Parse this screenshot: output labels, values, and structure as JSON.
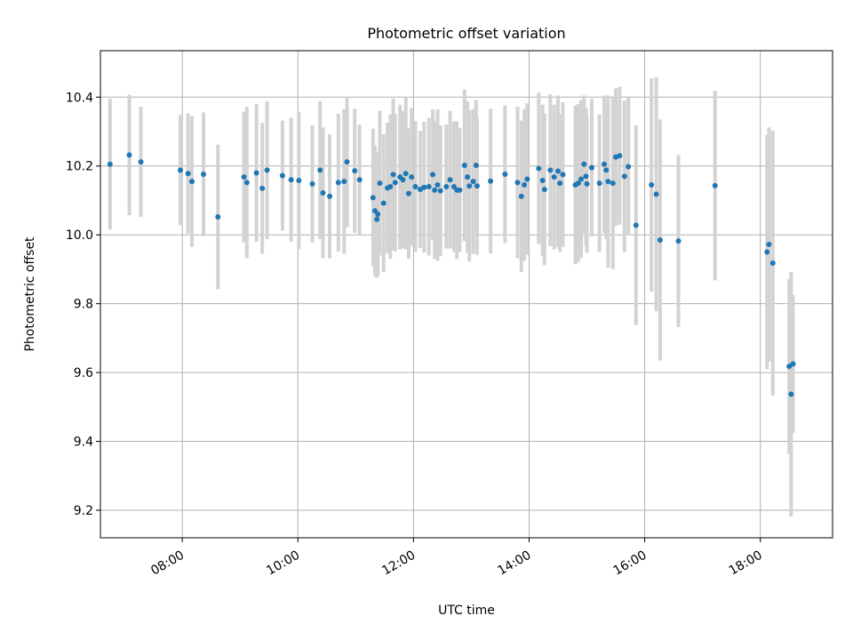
{
  "chart_data": {
    "type": "scatter",
    "title": "Photometric offset variation",
    "xlabel": "UTC time",
    "ylabel": "Photometric offset",
    "xlim": [
      "06:35",
      "19:15"
    ],
    "ylim": [
      9.12,
      10.535
    ],
    "grid": true,
    "x_ticks": [
      "08:00",
      "10:00",
      "12:00",
      "14:00",
      "16:00",
      "18:00"
    ],
    "y_ticks": [
      "9.2",
      "9.4",
      "9.6",
      "9.8",
      "10.0",
      "10.2",
      "10.4"
    ],
    "colors": {
      "point": "#1f77b4",
      "errorbar": "#d3d3d3",
      "grid": "#b0b0b0"
    },
    "points": [
      {
        "x": "06:45",
        "y": 10.205,
        "err": 0.19
      },
      {
        "x": "07:05",
        "y": 10.232,
        "err": 0.175
      },
      {
        "x": "07:17",
        "y": 10.212,
        "err": 0.16
      },
      {
        "x": "07:58",
        "y": 10.188,
        "err": 0.16
      },
      {
        "x": "08:06",
        "y": 10.178,
        "err": 0.175
      },
      {
        "x": "08:10",
        "y": 10.155,
        "err": 0.19
      },
      {
        "x": "08:22",
        "y": 10.176,
        "err": 0.18
      },
      {
        "x": "08:37",
        "y": 10.052,
        "err": 0.21
      },
      {
        "x": "09:04",
        "y": 10.168,
        "err": 0.19
      },
      {
        "x": "09:07",
        "y": 10.152,
        "err": 0.22
      },
      {
        "x": "09:17",
        "y": 10.18,
        "err": 0.2
      },
      {
        "x": "09:23",
        "y": 10.135,
        "err": 0.19
      },
      {
        "x": "09:28",
        "y": 10.188,
        "err": 0.2
      },
      {
        "x": "09:44",
        "y": 10.172,
        "err": 0.16
      },
      {
        "x": "09:53",
        "y": 10.16,
        "err": 0.18
      },
      {
        "x": "10:01",
        "y": 10.158,
        "err": 0.2
      },
      {
        "x": "10:15",
        "y": 10.148,
        "err": 0.17
      },
      {
        "x": "10:23",
        "y": 10.188,
        "err": 0.2
      },
      {
        "x": "10:26",
        "y": 10.122,
        "err": 0.19
      },
      {
        "x": "10:33",
        "y": 10.112,
        "err": 0.18
      },
      {
        "x": "10:42",
        "y": 10.152,
        "err": 0.2
      },
      {
        "x": "10:48",
        "y": 10.155,
        "err": 0.21
      },
      {
        "x": "10:51",
        "y": 10.212,
        "err": 0.19
      },
      {
        "x": "10:59",
        "y": 10.186,
        "err": 0.18
      },
      {
        "x": "11:04",
        "y": 10.16,
        "err": 0.16
      },
      {
        "x": "11:18",
        "y": 10.108,
        "err": 0.2
      },
      {
        "x": "11:20",
        "y": 10.07,
        "err": 0.19
      },
      {
        "x": "11:22",
        "y": 10.045,
        "err": 0.17
      },
      {
        "x": "11:23",
        "y": 10.06,
        "err": 0.18
      },
      {
        "x": "11:25",
        "y": 10.15,
        "err": 0.21
      },
      {
        "x": "11:29",
        "y": 10.092,
        "err": 0.2
      },
      {
        "x": "11:33",
        "y": 10.136,
        "err": 0.19
      },
      {
        "x": "11:36",
        "y": 10.14,
        "err": 0.21
      },
      {
        "x": "11:39",
        "y": 10.175,
        "err": 0.22
      },
      {
        "x": "11:41",
        "y": 10.152,
        "err": 0.2
      },
      {
        "x": "11:46",
        "y": 10.168,
        "err": 0.21
      },
      {
        "x": "11:49",
        "y": 10.16,
        "err": 0.2
      },
      {
        "x": "11:52",
        "y": 10.178,
        "err": 0.22
      },
      {
        "x": "11:55",
        "y": 10.12,
        "err": 0.19
      },
      {
        "x": "11:58",
        "y": 10.168,
        "err": 0.2
      },
      {
        "x": "12:02",
        "y": 10.14,
        "err": 0.19
      },
      {
        "x": "12:07",
        "y": 10.132,
        "err": 0.17
      },
      {
        "x": "12:11",
        "y": 10.138,
        "err": 0.19
      },
      {
        "x": "12:16",
        "y": 10.14,
        "err": 0.2
      },
      {
        "x": "12:20",
        "y": 10.175,
        "err": 0.19
      },
      {
        "x": "12:22",
        "y": 10.13,
        "err": 0.2
      },
      {
        "x": "12:25",
        "y": 10.145,
        "err": 0.22
      },
      {
        "x": "12:28",
        "y": 10.128,
        "err": 0.19
      },
      {
        "x": "12:34",
        "y": 10.14,
        "err": 0.18
      },
      {
        "x": "12:38",
        "y": 10.16,
        "err": 0.2
      },
      {
        "x": "12:42",
        "y": 10.14,
        "err": 0.19
      },
      {
        "x": "12:45",
        "y": 10.13,
        "err": 0.2
      },
      {
        "x": "12:48",
        "y": 10.13,
        "err": 0.18
      },
      {
        "x": "12:53",
        "y": 10.202,
        "err": 0.22
      },
      {
        "x": "12:56",
        "y": 10.168,
        "err": 0.22
      },
      {
        "x": "12:58",
        "y": 10.142,
        "err": 0.22
      },
      {
        "x": "13:02",
        "y": 10.155,
        "err": 0.21
      },
      {
        "x": "13:05",
        "y": 10.202,
        "err": 0.19
      },
      {
        "x": "13:06",
        "y": 10.142,
        "err": 0.2
      },
      {
        "x": "13:20",
        "y": 10.156,
        "err": 0.21
      },
      {
        "x": "13:35",
        "y": 10.176,
        "err": 0.2
      },
      {
        "x": "13:48",
        "y": 10.152,
        "err": 0.22
      },
      {
        "x": "13:52",
        "y": 10.112,
        "err": 0.22
      },
      {
        "x": "13:55",
        "y": 10.145,
        "err": 0.22
      },
      {
        "x": "13:58",
        "y": 10.162,
        "err": 0.22
      },
      {
        "x": "14:10",
        "y": 10.193,
        "err": 0.22
      },
      {
        "x": "14:14",
        "y": 10.158,
        "err": 0.22
      },
      {
        "x": "14:16",
        "y": 10.132,
        "err": 0.22
      },
      {
        "x": "14:22",
        "y": 10.188,
        "err": 0.22
      },
      {
        "x": "14:26",
        "y": 10.168,
        "err": 0.21
      },
      {
        "x": "14:30",
        "y": 10.185,
        "err": 0.22
      },
      {
        "x": "14:32",
        "y": 10.15,
        "err": 0.2
      },
      {
        "x": "14:35",
        "y": 10.175,
        "err": 0.21
      },
      {
        "x": "14:48",
        "y": 10.145,
        "err": 0.23
      },
      {
        "x": "14:51",
        "y": 10.15,
        "err": 0.23
      },
      {
        "x": "14:54",
        "y": 10.162,
        "err": 0.23
      },
      {
        "x": "14:57",
        "y": 10.205,
        "err": 0.2
      },
      {
        "x": "14:59",
        "y": 10.17,
        "err": 0.2
      },
      {
        "x": "15:00",
        "y": 10.148,
        "err": 0.2
      },
      {
        "x": "15:05",
        "y": 10.195,
        "err": 0.2
      },
      {
        "x": "15:13",
        "y": 10.15,
        "err": 0.2
      },
      {
        "x": "15:18",
        "y": 10.205,
        "err": 0.2
      },
      {
        "x": "15:20",
        "y": 10.188,
        "err": 0.2
      },
      {
        "x": "15:22",
        "y": 10.155,
        "err": 0.25
      },
      {
        "x": "15:27",
        "y": 10.15,
        "err": 0.25
      },
      {
        "x": "15:30",
        "y": 10.226,
        "err": 0.2
      },
      {
        "x": "15:34",
        "y": 10.23,
        "err": 0.2
      },
      {
        "x": "15:39",
        "y": 10.17,
        "err": 0.22
      },
      {
        "x": "15:43",
        "y": 10.198,
        "err": 0.2
      },
      {
        "x": "15:51",
        "y": 10.028,
        "err": 0.29
      },
      {
        "x": "16:07",
        "y": 10.145,
        "err": 0.31
      },
      {
        "x": "16:12",
        "y": 10.118,
        "err": 0.34
      },
      {
        "x": "16:16",
        "y": 9.985,
        "err": 0.35
      },
      {
        "x": "16:35",
        "y": 9.982,
        "err": 0.25
      },
      {
        "x": "17:13",
        "y": 10.143,
        "err": 0.275
      },
      {
        "x": "18:07",
        "y": 9.95,
        "err": 0.34
      },
      {
        "x": "18:09",
        "y": 9.972,
        "err": 0.34
      },
      {
        "x": "18:13",
        "y": 9.918,
        "err": 0.385
      },
      {
        "x": "18:30",
        "y": 9.618,
        "err": 0.255
      },
      {
        "x": "18:32",
        "y": 9.537,
        "err": 0.355
      },
      {
        "x": "18:34",
        "y": 9.625,
        "err": 0.2
      }
    ]
  }
}
